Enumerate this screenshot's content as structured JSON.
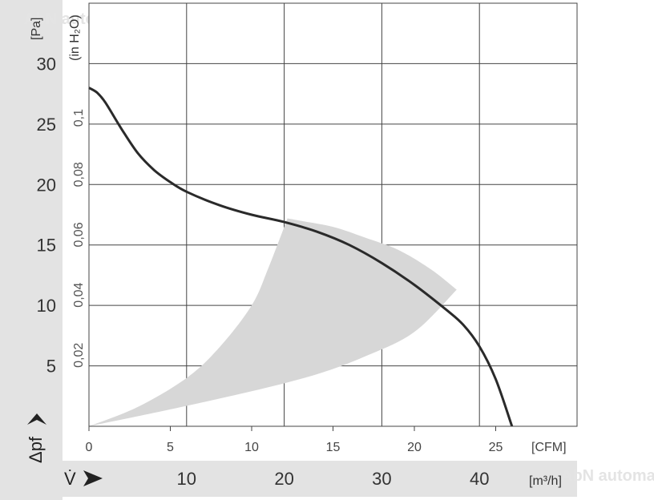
{
  "chart_data": {
    "type": "line",
    "title": "",
    "x_axis_cfm": {
      "unit_label": "[CFM]",
      "ticks": [
        "0",
        "5",
        "10",
        "15",
        "20",
        "25"
      ],
      "range": [
        0,
        30
      ]
    },
    "x_axis_m3h": {
      "unit_label": "[m³/h]",
      "ticks": [
        "10",
        "20",
        "30",
        "40"
      ],
      "range": [
        0,
        50
      ],
      "symbol": "V̇"
    },
    "y_axis_pa": {
      "unit_label": "[Pa]",
      "ticks": [
        "5",
        "10",
        "15",
        "20",
        "25",
        "30"
      ],
      "range": [
        0,
        35
      ],
      "symbol": "Δpf"
    },
    "y_axis_inh2o": {
      "unit_label": "(in H₂O)",
      "ticks": [
        "0,02",
        "0,04",
        "0,06",
        "0,08",
        "0,1"
      ]
    },
    "grid": true,
    "series": [
      {
        "x_cfm": [
          0,
          0.5,
          1,
          2,
          3,
          4,
          5,
          6,
          8,
          10,
          12,
          14,
          16,
          18,
          20,
          22,
          23,
          24,
          25,
          26
        ],
        "y_pa": [
          28.0,
          27.6,
          26.8,
          24.6,
          22.6,
          21.2,
          20.2,
          19.4,
          18.3,
          17.5,
          16.9,
          16.1,
          15.0,
          13.5,
          11.7,
          9.6,
          8.4,
          6.6,
          3.9,
          0.0
        ]
      }
    ],
    "operating_region": {
      "upper_x_cfm": [
        0,
        3,
        6,
        8,
        10,
        11,
        12.2
      ],
      "upper_y_pa": [
        0,
        1.6,
        4.0,
        6.5,
        10.0,
        13.0,
        17.2
      ],
      "top_x_cfm": [
        12.2,
        13,
        15,
        17,
        19,
        21,
        22.6
      ],
      "top_y_pa": [
        17.2,
        17.0,
        16.5,
        15.6,
        14.6,
        13.0,
        11.3
      ],
      "lower_x_cfm": [
        22.6,
        20,
        17,
        14,
        10,
        5,
        0
      ],
      "lower_y_pa": [
        11.3,
        7.8,
        5.8,
        4.3,
        2.9,
        1.4,
        0
      ]
    },
    "watermark": "AbN automation"
  }
}
